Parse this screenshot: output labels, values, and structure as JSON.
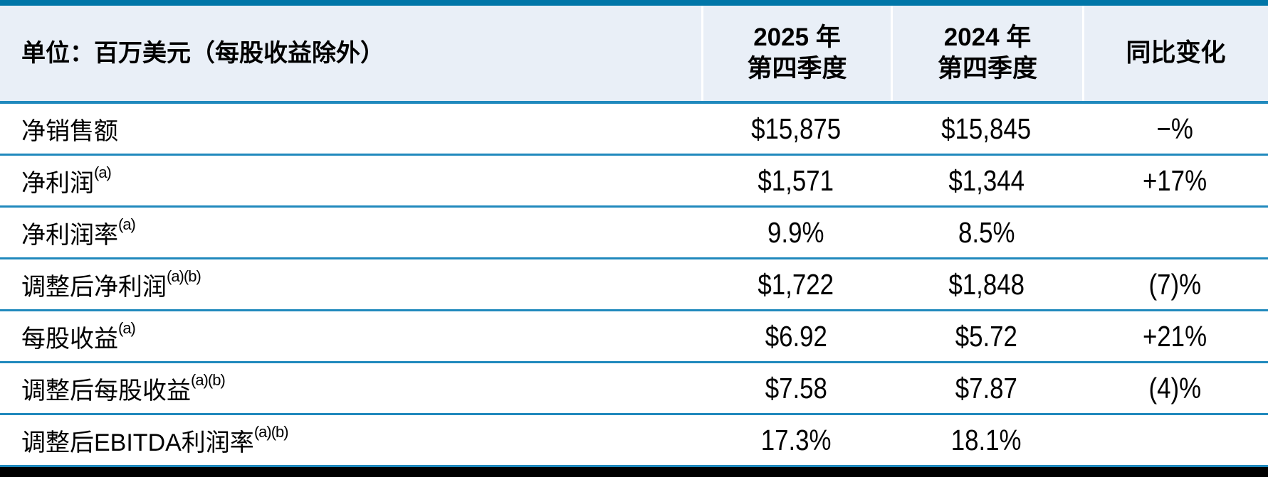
{
  "colors": {
    "top_bar": "#0076a8",
    "header_background": "#e9eff7",
    "separator_blue": "#2089bd",
    "header_divider_white": "#ffffff",
    "bottom_bar": "#000000",
    "text": "#000000",
    "row_background": "#ffffff"
  },
  "table": {
    "title": "单位：百万美元（每股收益除外）",
    "columns": [
      {
        "line1": "2025 年",
        "line2": "第四季度"
      },
      {
        "line1": "2024 年",
        "line2": "第四季度"
      },
      {
        "line1": "同比变化",
        "line2": ""
      }
    ],
    "rows": [
      {
        "label": "净销售额",
        "sup": "",
        "q4_2025": "$15,875",
        "q4_2024": "$15,845",
        "yoy": "−%"
      },
      {
        "label": "净利润",
        "sup": "(a)",
        "q4_2025": "$1,571",
        "q4_2024": "$1,344",
        "yoy": "+17%"
      },
      {
        "label": "净利润率",
        "sup": "(a)",
        "q4_2025": "9.9%",
        "q4_2024": "8.5%",
        "yoy": ""
      },
      {
        "label": "调整后净利润",
        "sup": "(a)(b)",
        "q4_2025": "$1,722",
        "q4_2024": "$1,848",
        "yoy": "(7)%"
      },
      {
        "label": "每股收益",
        "sup": "(a)",
        "q4_2025": "$6.92",
        "q4_2024": "$5.72",
        "yoy": "+21%"
      },
      {
        "label": "调整后每股收益",
        "sup": "(a)(b)",
        "q4_2025": "$7.58",
        "q4_2024": "$7.87",
        "yoy": "(4)%"
      },
      {
        "label": "调整后EBITDA利润率",
        "sup": "(a)(b)",
        "q4_2025": "17.3%",
        "q4_2024": "18.1%",
        "yoy": ""
      }
    ]
  }
}
